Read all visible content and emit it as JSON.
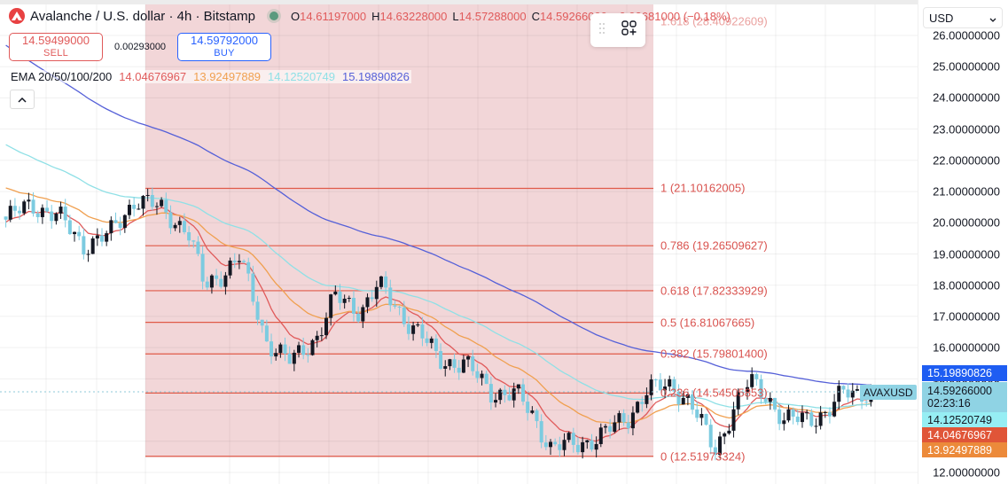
{
  "header": {
    "title": "Avalanche / U.S. dollar · 4h · Bitstamp",
    "ohlc": {
      "o_label": "O",
      "o": "14.61197000",
      "h_label": "H",
      "h": "14.63228000",
      "l_label": "L",
      "l": "14.57288000",
      "c_label": "C",
      "c": "14.59266000",
      "change": "−0.02681000 (−0.18%)"
    }
  },
  "trade": {
    "sell_price": "14.59499000",
    "sell_label": "SELL",
    "spread": "0.00293000",
    "buy_price": "14.59792000",
    "buy_label": "BUY"
  },
  "indicator": {
    "name": "EMA 20/50/100/200",
    "values": [
      "14.04676967",
      "13.92497889",
      "14.12520749",
      "15.19890826"
    ],
    "colors": [
      "#e05a5a",
      "#f0a050",
      "#8fe0e6",
      "#5560d8"
    ]
  },
  "axis": {
    "currency": "USD",
    "ticks": [
      "26.00000000",
      "25.00000000",
      "24.00000000",
      "23.00000000",
      "22.00000000",
      "21.00000000",
      "20.00000000",
      "19.00000000",
      "18.00000000",
      "17.00000000",
      "16.00000000",
      "15.00000000",
      "14.00000000",
      "13.00000000",
      "12.00000000"
    ]
  },
  "tags": {
    "symbol": "AVAXUSD",
    "ema200": "15.19890826",
    "last_price": "14.59266000",
    "countdown": "02:23:16",
    "ema100": "14.12520749",
    "ema20": "14.04676967",
    "ema50": "13.92497889"
  },
  "fib": [
    {
      "label": "1.618 (28.40922609)"
    },
    {
      "label": "1 (21.10162005)"
    },
    {
      "label": "0.786 (19.26509627)"
    },
    {
      "label": "0.618 (17.82333929)"
    },
    {
      "label": "0.5 (16.81067665)"
    },
    {
      "label": "0.382 (15.79801400)"
    },
    {
      "label": "0.236 (14.54505853)"
    },
    {
      "label": "0 (12.51973324)"
    }
  ],
  "chart_data": {
    "type": "candlestick",
    "title": "Avalanche / U.S. dollar · 4h · Bitstamp",
    "symbol": "AVAXUSD",
    "timeframe": "4h",
    "ylabel": "USD",
    "ylim": [
      12.0,
      26.2
    ],
    "grid": true,
    "last_ohlc": {
      "open": 14.61197,
      "high": 14.63228,
      "low": 14.57288,
      "close": 14.59266
    },
    "approx_close_path": [
      {
        "x": 0.0,
        "close": 20.1
      },
      {
        "x": 0.03,
        "close": 20.6
      },
      {
        "x": 0.06,
        "close": 20.2
      },
      {
        "x": 0.09,
        "close": 19.3
      },
      {
        "x": 0.12,
        "close": 19.6
      },
      {
        "x": 0.15,
        "close": 20.8
      },
      {
        "x": 0.18,
        "close": 20.4
      },
      {
        "x": 0.21,
        "close": 19.8
      },
      {
        "x": 0.23,
        "close": 17.9
      },
      {
        "x": 0.27,
        "close": 18.9
      },
      {
        "x": 0.3,
        "close": 16.3
      },
      {
        "x": 0.33,
        "close": 15.5
      },
      {
        "x": 0.36,
        "close": 16.4
      },
      {
        "x": 0.38,
        "close": 17.6
      },
      {
        "x": 0.41,
        "close": 17.2
      },
      {
        "x": 0.43,
        "close": 18.0
      },
      {
        "x": 0.46,
        "close": 17.0
      },
      {
        "x": 0.48,
        "close": 16.4
      },
      {
        "x": 0.5,
        "close": 15.6
      },
      {
        "x": 0.53,
        "close": 15.5
      },
      {
        "x": 0.56,
        "close": 14.6
      },
      {
        "x": 0.59,
        "close": 14.5
      },
      {
        "x": 0.61,
        "close": 13.8
      },
      {
        "x": 0.63,
        "close": 12.8
      },
      {
        "x": 0.66,
        "close": 12.9
      },
      {
        "x": 0.69,
        "close": 13.2
      },
      {
        "x": 0.72,
        "close": 13.8
      },
      {
        "x": 0.74,
        "close": 14.6
      },
      {
        "x": 0.77,
        "close": 14.8
      },
      {
        "x": 0.79,
        "close": 14.3
      },
      {
        "x": 0.81,
        "close": 13.2
      },
      {
        "x": 0.82,
        "close": 12.7
      },
      {
        "x": 0.84,
        "close": 14.0
      },
      {
        "x": 0.86,
        "close": 14.9
      },
      {
        "x": 0.88,
        "close": 14.5
      },
      {
        "x": 0.9,
        "close": 13.6
      },
      {
        "x": 0.93,
        "close": 13.8
      },
      {
        "x": 0.95,
        "close": 13.9
      },
      {
        "x": 0.97,
        "close": 14.59
      }
    ],
    "series": [
      {
        "name": "EMA 20",
        "last": 14.04676967,
        "color": "#e05a5a"
      },
      {
        "name": "EMA 50",
        "last": 13.92497889,
        "color": "#f0a050"
      },
      {
        "name": "EMA 100",
        "last": 14.12520749,
        "color": "#8fe0e6"
      },
      {
        "name": "EMA 200",
        "last": 15.19890826,
        "color": "#5560d8"
      }
    ],
    "annotations": [
      {
        "type": "fib_retracement",
        "levels": [
          {
            "ratio": 1.618,
            "price": 28.40922609
          },
          {
            "ratio": 1,
            "price": 21.10162005
          },
          {
            "ratio": 0.786,
            "price": 19.26509627
          },
          {
            "ratio": 0.618,
            "price": 17.82333929
          },
          {
            "ratio": 0.5,
            "price": 16.81067665
          },
          {
            "ratio": 0.382,
            "price": 15.798014
          },
          {
            "ratio": 0.236,
            "price": 14.54505853
          },
          {
            "ratio": 0,
            "price": 12.51973324
          }
        ]
      }
    ]
  }
}
